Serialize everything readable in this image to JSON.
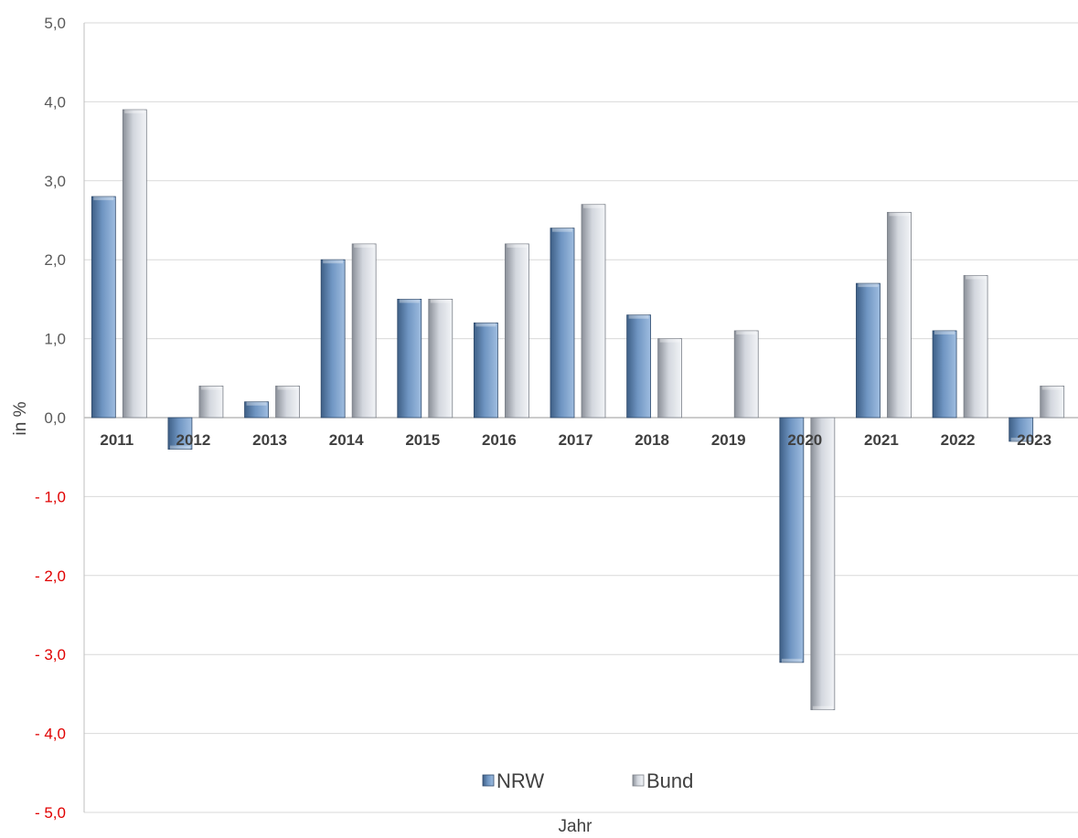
{
  "chart_data": {
    "type": "bar",
    "title": "",
    "xlabel": "Jahr",
    "ylabel": "in %",
    "ylim": [
      -5,
      5
    ],
    "yticks": [
      5,
      4,
      3,
      2,
      1,
      0,
      -1,
      -2,
      -3,
      -4,
      -5
    ],
    "ytick_labels": [
      "5,0",
      "4,0",
      "3,0",
      "2,0",
      "1,0",
      "0,0",
      "- 1,0",
      "- 2,0",
      "- 3,0",
      "- 4,0",
      "- 5,0"
    ],
    "negative_tick_color": "#e00000",
    "grid": true,
    "legend_position": "bottom-center",
    "categories": [
      "2011",
      "2012",
      "2013",
      "2014",
      "2015",
      "2016",
      "2017",
      "2018",
      "2019",
      "2020",
      "2021",
      "2022",
      "2023"
    ],
    "series": [
      {
        "name": "NRW",
        "color": "#5b7fa8",
        "values": [
          2.8,
          -0.4,
          0.2,
          2.0,
          1.5,
          1.2,
          2.4,
          1.3,
          0.0,
          -3.1,
          1.7,
          1.1,
          -0.3
        ]
      },
      {
        "name": "Bund",
        "color": "#c8ccd4",
        "values": [
          3.9,
          0.4,
          0.4,
          2.2,
          1.5,
          2.2,
          2.7,
          1.0,
          1.1,
          -3.7,
          2.6,
          1.8,
          0.4
        ]
      }
    ]
  }
}
